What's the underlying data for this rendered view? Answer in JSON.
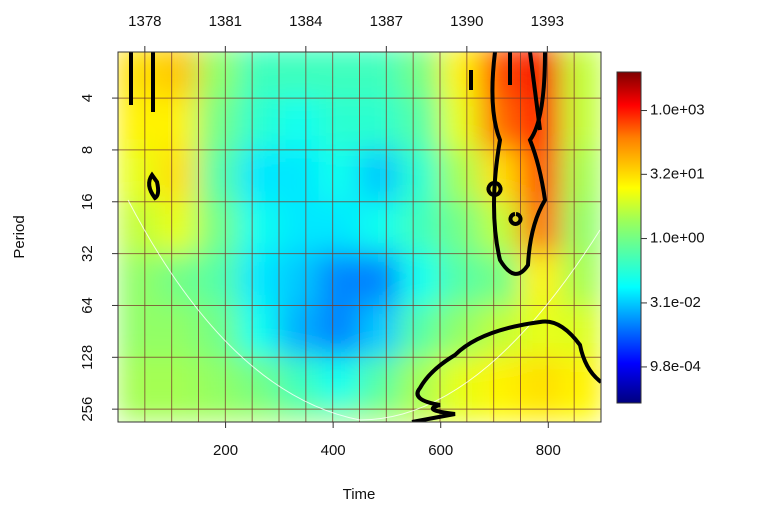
{
  "chart_data": {
    "type": "heatmap",
    "x_label": "Time",
    "y_label": "Period",
    "xlim": [
      0,
      898
    ],
    "xticks": [
      200,
      400,
      600,
      800
    ],
    "x2lim": [
      1377.0,
      1395.0
    ],
    "x2ticks": [
      1378,
      1381,
      1384,
      1387,
      1390,
      1393
    ],
    "x2minorticks": [
      1378,
      1379,
      1380,
      1381,
      1382,
      1383,
      1384,
      1385,
      1386,
      1387,
      1388,
      1389,
      1390,
      1391,
      1392,
      1393,
      1394
    ],
    "ylim": [
      2.16,
      304
    ],
    "ylog": true,
    "yreverse": true,
    "yticks": [
      4,
      8,
      16,
      32,
      64,
      128,
      256
    ],
    "grid": true,
    "time_bins": [
      0,
      75,
      150,
      225,
      300,
      375,
      450,
      525,
      600,
      675,
      750,
      825,
      900
    ],
    "period_bins": [
      2,
      4,
      8,
      16,
      32,
      64,
      128,
      256,
      304
    ],
    "z": [
      [
        30,
        50,
        2,
        0.3,
        0.3,
        0.3,
        0.3,
        1,
        20,
        500,
        1500,
        5
      ],
      [
        20,
        20,
        1,
        0.2,
        0.1,
        0.2,
        0.2,
        0.5,
        10,
        300,
        1000,
        5
      ],
      [
        10,
        30,
        0.5,
        0.05,
        0.05,
        0.1,
        0.03,
        0.2,
        3,
        30,
        500,
        3
      ],
      [
        5,
        10,
        1,
        0.1,
        0.05,
        0.05,
        0.1,
        0.3,
        1,
        5,
        300,
        2
      ],
      [
        2,
        1,
        0.5,
        0.05,
        0.03,
        0.01,
        0.01,
        0.1,
        0.5,
        1,
        20,
        3
      ],
      [
        2,
        2,
        1,
        0.1,
        0.02,
        0.01,
        0.03,
        0.5,
        2,
        5,
        10,
        8
      ],
      [
        3,
        3,
        2,
        1,
        0.3,
        0.1,
        0.5,
        3,
        10,
        20,
        30,
        20
      ],
      [
        3,
        3,
        3,
        3,
        2,
        2,
        3,
        5,
        10,
        15,
        20,
        15
      ]
    ],
    "zlim": [
      0.00014,
      8000
    ],
    "zlog": true,
    "zticks": [
      {
        "value": 1000,
        "label": "1.0e+03"
      },
      {
        "value": 32,
        "label": "3.2e+01"
      },
      {
        "value": 1,
        "label": "1.0e+00"
      },
      {
        "value": 0.031,
        "label": "3.1e-02"
      },
      {
        "value": 0.00098,
        "label": "9.8e-04"
      }
    ]
  }
}
